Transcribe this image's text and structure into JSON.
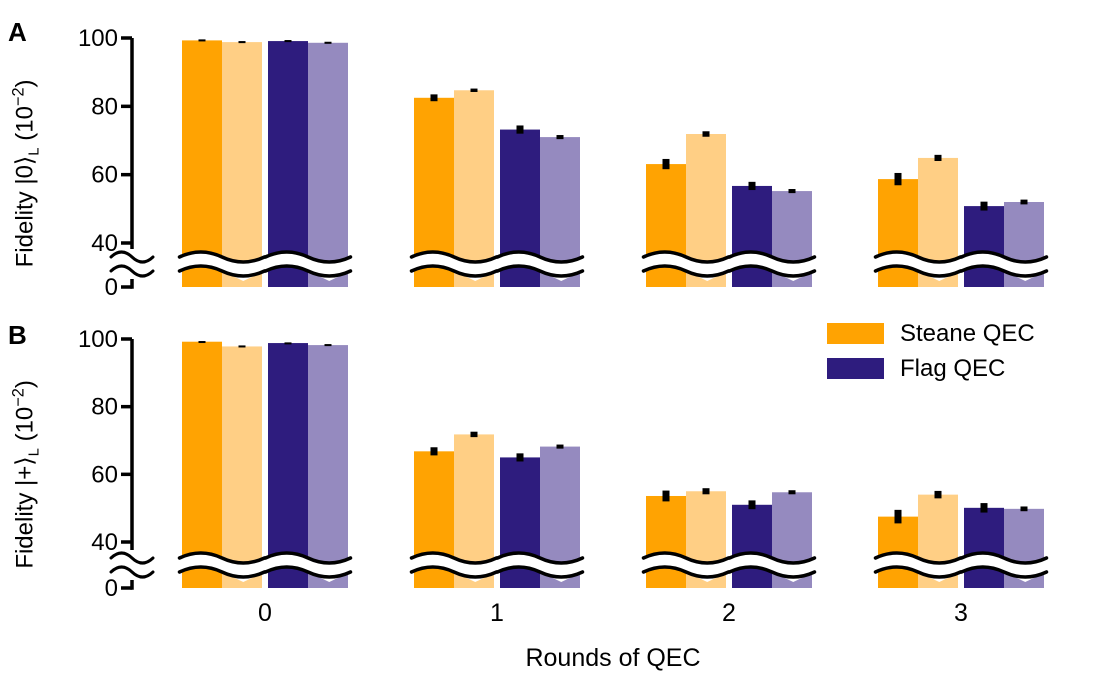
{
  "figure": {
    "xlabel": "Rounds of QEC",
    "background": "#ffffff",
    "axis_color": "#000000",
    "legend": [
      {
        "label": "Steane QEC",
        "color": "#FFA302"
      },
      {
        "label": "Flag QEC",
        "color": "#2E1C7E"
      }
    ]
  },
  "chart_data": [
    {
      "type": "bar",
      "panel": "A",
      "ylabel": {
        "main": "Fidelity |0⟩",
        "subscript": "L",
        "mid": " (10",
        "superscript": "−2",
        "end": ")"
      },
      "yticks": [
        0,
        40,
        60,
        80,
        100
      ],
      "ylim": [
        0,
        100
      ],
      "axis_break_between": [
        0,
        40
      ],
      "grid": false,
      "categories": [
        "0",
        "1",
        "2",
        "3"
      ],
      "series": [
        {
          "name": "Steane QEC",
          "shade": "dark",
          "color": "#FFA302",
          "values": [
            99.3,
            82.5,
            63.1,
            58.7
          ],
          "errors": [
            0.3,
            1.0,
            1.5,
            1.8
          ]
        },
        {
          "name": "Steane QEC (light)",
          "shade": "light",
          "color": "#FFCF85",
          "values": [
            98.8,
            84.7,
            71.9,
            64.9
          ],
          "errors": [
            0.3,
            0.5,
            0.8,
            0.9
          ]
        },
        {
          "name": "Flag QEC",
          "shade": "dark",
          "color": "#2E1C7E",
          "values": [
            99.1,
            73.2,
            56.7,
            50.8
          ],
          "errors": [
            0.3,
            1.2,
            1.2,
            1.3
          ]
        },
        {
          "name": "Flag QEC (light)",
          "shade": "light",
          "color": "#958ABF",
          "values": [
            98.6,
            71.0,
            55.2,
            52.0
          ],
          "errors": [
            0.3,
            0.6,
            0.6,
            0.7
          ]
        }
      ]
    },
    {
      "type": "bar",
      "panel": "B",
      "ylabel": {
        "main": "Fidelity |+⟩",
        "subscript": "L",
        "mid": " (10",
        "superscript": "−2",
        "end": ")"
      },
      "yticks": [
        0,
        40,
        60,
        80,
        100
      ],
      "ylim": [
        0,
        100
      ],
      "axis_break_between": [
        0,
        40
      ],
      "grid": false,
      "categories": [
        "0",
        "1",
        "2",
        "3"
      ],
      "series": [
        {
          "name": "Steane QEC",
          "shade": "dark",
          "color": "#FFA302",
          "values": [
            99.2,
            66.8,
            53.6,
            47.5
          ],
          "errors": [
            0.2,
            1.2,
            1.6,
            2.0
          ]
        },
        {
          "name": "Steane QEC (light)",
          "shade": "light",
          "color": "#FFCF85",
          "values": [
            97.8,
            71.8,
            55.0,
            54.0
          ],
          "errors": [
            0.3,
            0.8,
            0.9,
            1.1
          ]
        },
        {
          "name": "Flag QEC",
          "shade": "dark",
          "color": "#2E1C7E",
          "values": [
            98.8,
            65.0,
            51.0,
            50.1
          ],
          "errors": [
            0.2,
            1.2,
            1.3,
            1.4
          ]
        },
        {
          "name": "Flag QEC (light)",
          "shade": "light",
          "color": "#958ABF",
          "values": [
            98.2,
            68.2,
            54.7,
            49.8
          ],
          "errors": [
            0.3,
            0.6,
            0.6,
            0.7
          ]
        }
      ]
    }
  ]
}
